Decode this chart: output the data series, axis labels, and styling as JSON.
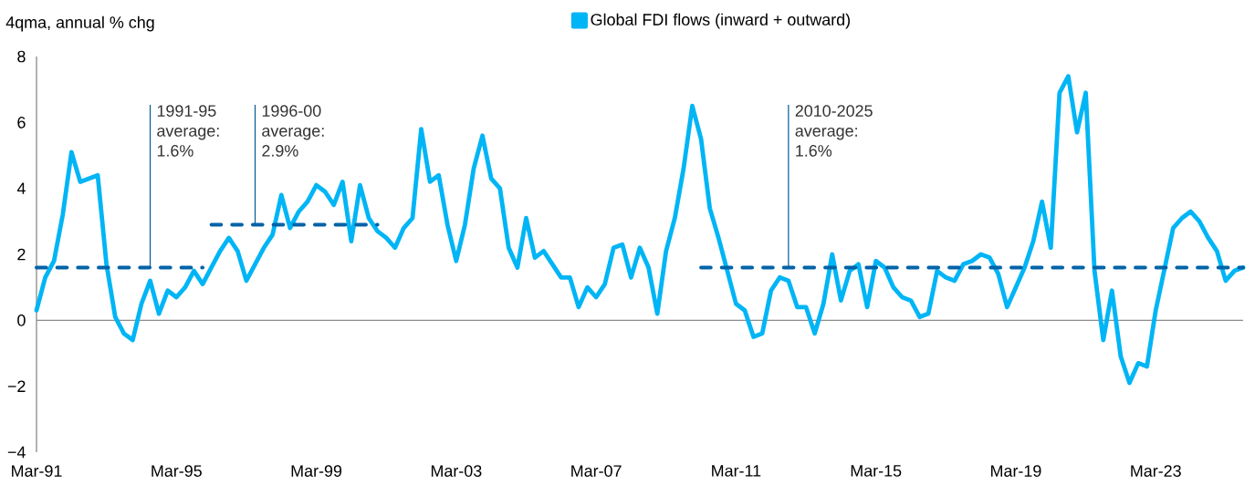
{
  "chart_data": {
    "type": "line",
    "ylabel": "4qma, annual % chg",
    "xlim": [
      "1991-03",
      "2025-09"
    ],
    "xticks": [
      {
        "value": "1991-03",
        "label": "Mar-91"
      },
      {
        "value": "1995-03",
        "label": "Mar-95"
      },
      {
        "value": "1999-03",
        "label": "Mar-99"
      },
      {
        "value": "2003-03",
        "label": "Mar-03"
      },
      {
        "value": "2007-03",
        "label": "Mar-07"
      },
      {
        "value": "2011-03",
        "label": "Mar-11"
      },
      {
        "value": "2015-03",
        "label": "Mar-15"
      },
      {
        "value": "2019-03",
        "label": "Mar-19"
      },
      {
        "value": "2023-03",
        "label": "Mar-23"
      }
    ],
    "ylim": [
      -4,
      8
    ],
    "yticks": [
      {
        "value": -4,
        "label": "−4"
      },
      {
        "value": -2,
        "label": "−2"
      },
      0,
      2,
      4,
      6,
      8
    ],
    "legend": "top",
    "series": [
      {
        "name": "Global FDI flows (inward + outward)",
        "color": "#00b5f5",
        "x": [
          "1991-03",
          "1991-06",
          "1991-09",
          "1991-12",
          "1992-03",
          "1992-06",
          "1992-12",
          "1993-03",
          "1993-06",
          "1993-09",
          "1993-12",
          "1994-03",
          "1994-06",
          "1994-09",
          "1994-12",
          "1995-03",
          "1995-06",
          "1995-09",
          "1995-12",
          "1996-03",
          "1996-06",
          "1996-09",
          "1996-12",
          "1997-03",
          "1997-06",
          "1997-09",
          "1997-12",
          "1998-03",
          "1998-06",
          "1998-09",
          "1998-12",
          "1999-03",
          "1999-06",
          "1999-09",
          "1999-12",
          "2000-03",
          "2000-06",
          "2000-09",
          "2000-12",
          "2001-03",
          "2001-06",
          "2001-09",
          "2001-12",
          "2002-03",
          "2002-06",
          "2002-09",
          "2002-12",
          "2003-03",
          "2003-06",
          "2003-09",
          "2003-12",
          "2004-03",
          "2004-06",
          "2004-09",
          "2004-12",
          "2005-03",
          "2005-06",
          "2005-09",
          "2005-12",
          "2006-03",
          "2006-06",
          "2006-09",
          "2006-12",
          "2007-03",
          "2007-06",
          "2007-09",
          "2007-12",
          "2008-03",
          "2008-06",
          "2008-09",
          "2008-12",
          "2009-03",
          "2009-06",
          "2009-09",
          "2009-12",
          "2010-03",
          "2010-06",
          "2010-09",
          "2010-12",
          "2011-03",
          "2011-06",
          "2011-09",
          "2011-12",
          "2012-03",
          "2012-06",
          "2012-09",
          "2012-12",
          "2013-03",
          "2013-06",
          "2013-09",
          "2013-12",
          "2014-03",
          "2014-06",
          "2014-09",
          "2014-12",
          "2015-03",
          "2015-06",
          "2015-09",
          "2015-12",
          "2016-03",
          "2016-06",
          "2016-09",
          "2016-12",
          "2017-03",
          "2017-06",
          "2017-09",
          "2017-12",
          "2018-03",
          "2018-06",
          "2018-09",
          "2018-12",
          "2019-03",
          "2019-06",
          "2019-09",
          "2019-12",
          "2020-03",
          "2020-06",
          "2020-09",
          "2020-12",
          "2021-03",
          "2021-06",
          "2021-09",
          "2021-12",
          "2022-03",
          "2022-06",
          "2022-09",
          "2022-12",
          "2023-03",
          "2023-09",
          "2023-12",
          "2024-03",
          "2024-06",
          "2024-09",
          "2024-12",
          "2025-03",
          "2025-06",
          "2025-09"
        ],
        "values": [
          0.3,
          1.3,
          1.8,
          3.2,
          5.1,
          4.2,
          4.4,
          1.7,
          0.1,
          -0.4,
          -0.6,
          0.5,
          1.2,
          0.2,
          0.9,
          0.7,
          1.0,
          1.5,
          1.1,
          1.6,
          2.1,
          2.5,
          2.1,
          1.2,
          1.7,
          2.2,
          2.6,
          3.8,
          2.8,
          3.3,
          3.6,
          4.1,
          3.9,
          3.5,
          4.2,
          2.4,
          4.1,
          3.1,
          2.7,
          2.5,
          2.2,
          2.8,
          3.1,
          5.8,
          4.2,
          4.4,
          2.9,
          1.8,
          2.9,
          4.6,
          5.6,
          4.3,
          4.0,
          2.2,
          1.6,
          3.1,
          1.9,
          2.1,
          1.7,
          1.3,
          1.3,
          0.4,
          1.0,
          0.7,
          1.1,
          2.2,
          2.3,
          1.3,
          2.2,
          1.6,
          0.2,
          2.1,
          3.1,
          4.6,
          6.5,
          5.5,
          3.4,
          2.5,
          1.5,
          0.5,
          0.3,
          -0.5,
          -0.4,
          0.9,
          1.3,
          1.2,
          0.4,
          0.4,
          -0.4,
          0.5,
          2.0,
          0.6,
          1.5,
          1.7,
          0.4,
          1.8,
          1.6,
          1.0,
          0.7,
          0.6,
          0.1,
          0.2,
          1.5,
          1.3,
          1.2,
          1.7,
          1.8,
          2.0,
          1.9,
          1.4,
          0.4,
          1.0,
          1.6,
          2.4,
          3.6,
          2.2,
          6.9,
          7.4,
          5.7,
          6.9,
          1.5,
          -0.6,
          0.9,
          -1.1,
          -1.9,
          -1.3,
          -1.4,
          0.3,
          2.8,
          3.1,
          3.3,
          3.0,
          2.5,
          2.1,
          1.2,
          1.5,
          1.6
        ]
      },
      {
        "type": "line",
        "line_style": "dashed",
        "color": "#0063a8",
        "x": [
          "1991-03",
          "1995-12"
        ],
        "values": [
          1.6,
          1.6
        ]
      },
      {
        "type": "line",
        "line_style": "dashed",
        "color": "#0063a8",
        "x": [
          "1996-03",
          "2000-12"
        ],
        "values": [
          2.9,
          2.9
        ]
      },
      {
        "type": "line",
        "line_style": "dashed",
        "color": "#0063a8",
        "x": [
          "2010-03",
          "2025-09"
        ],
        "values": [
          1.6,
          1.6
        ]
      }
    ],
    "annotations": [
      {
        "text": "1991-95 average: 1.6%",
        "x": "1994-06",
        "y": 1.6
      },
      {
        "text": "1996-00 average: 2.9%",
        "x": "1997-06",
        "y": 2.9
      },
      {
        "text": "2010-2025 average: 1.6%",
        "x": "2012-09",
        "y": 1.6
      }
    ]
  }
}
